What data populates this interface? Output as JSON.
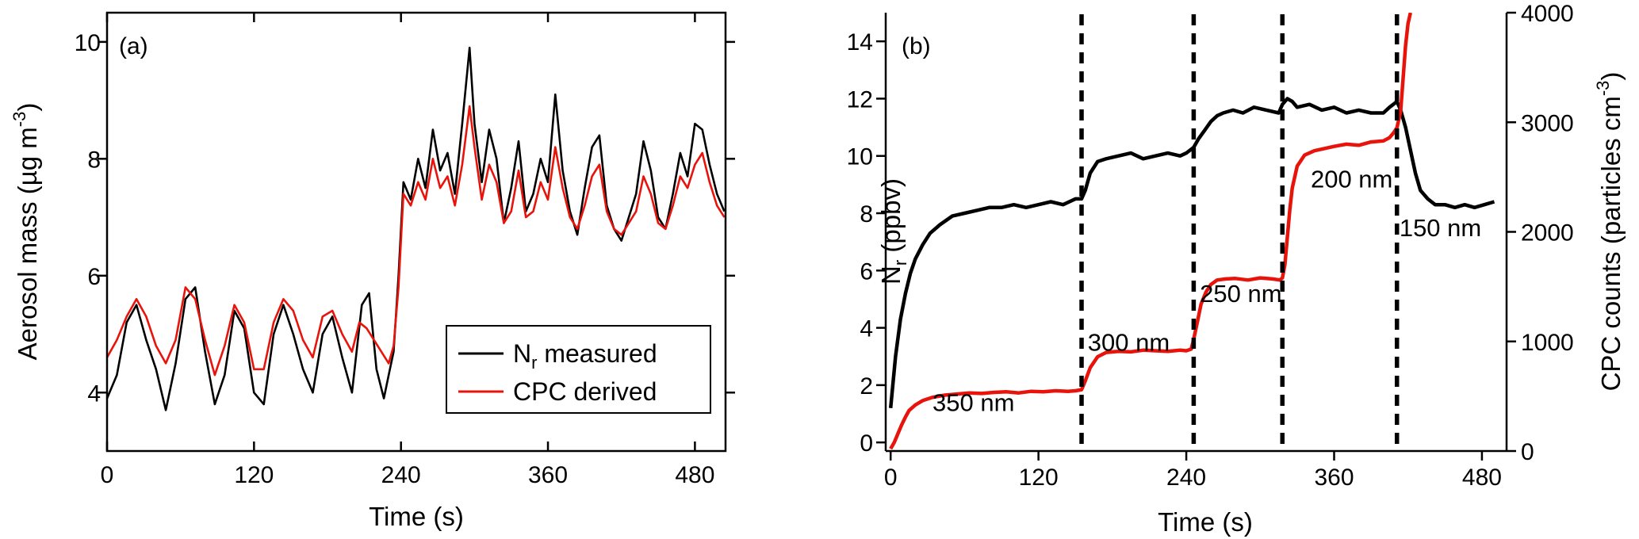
{
  "chart_data": [
    {
      "type": "line",
      "panel_label": "(a)",
      "xlabel": "Time (s)",
      "ylabel": "Aerosol mass (µg m",
      "ylabel_sup": "-3",
      "ylabel_close": ")",
      "xlim": [
        0,
        505
      ],
      "ylim": [
        3,
        10.5
      ],
      "xticks": [
        0,
        120,
        240,
        360,
        480
      ],
      "yticks": [
        4,
        6,
        8,
        10
      ],
      "legend_position": "bottom-right",
      "legend": {
        "nr_main": "N",
        "nr_sub": "r",
        "nr_rest": " measured",
        "cpc": "CPC derived"
      },
      "series": [
        {
          "name": "Nr measured",
          "color": "#000000",
          "x": [
            0,
            8,
            16,
            24,
            32,
            40,
            48,
            56,
            64,
            72,
            80,
            88,
            96,
            104,
            112,
            120,
            128,
            136,
            144,
            152,
            160,
            168,
            176,
            184,
            192,
            200,
            208,
            214,
            220,
            226,
            230,
            234,
            238,
            242,
            248,
            254,
            260,
            266,
            272,
            278,
            284,
            290,
            296,
            300,
            306,
            312,
            318,
            324,
            330,
            336,
            342,
            348,
            354,
            360,
            366,
            372,
            378,
            384,
            390,
            396,
            402,
            408,
            414,
            420,
            426,
            432,
            438,
            444,
            450,
            456,
            462,
            468,
            474,
            480,
            486,
            492,
            498,
            504
          ],
          "y": [
            3.9,
            4.3,
            5.2,
            5.5,
            4.9,
            4.4,
            3.7,
            4.5,
            5.6,
            5.8,
            4.7,
            3.8,
            4.3,
            5.4,
            5.1,
            4.0,
            3.8,
            5.0,
            5.5,
            5.0,
            4.4,
            4.0,
            5.0,
            5.3,
            4.6,
            4.0,
            5.5,
            5.7,
            4.4,
            3.9,
            4.3,
            4.7,
            6.0,
            7.6,
            7.3,
            8.0,
            7.5,
            8.5,
            7.8,
            8.1,
            7.4,
            8.6,
            9.9,
            8.6,
            7.6,
            8.5,
            8.0,
            6.9,
            7.5,
            8.3,
            7.1,
            7.4,
            8.0,
            7.6,
            9.1,
            7.8,
            7.1,
            6.7,
            7.5,
            8.2,
            8.4,
            7.2,
            6.8,
            6.6,
            7.0,
            7.4,
            8.3,
            7.8,
            7.0,
            6.8,
            7.4,
            8.1,
            7.7,
            8.6,
            8.5,
            7.9,
            7.4,
            7.1
          ]
        },
        {
          "name": "CPC derived",
          "color": "#e8140c",
          "x": [
            0,
            8,
            16,
            24,
            32,
            40,
            48,
            56,
            64,
            72,
            80,
            88,
            96,
            104,
            112,
            120,
            128,
            136,
            144,
            152,
            160,
            168,
            176,
            184,
            192,
            200,
            206,
            212,
            230,
            234,
            238,
            242,
            248,
            254,
            260,
            266,
            272,
            278,
            284,
            290,
            296,
            300,
            306,
            312,
            318,
            324,
            330,
            336,
            342,
            348,
            354,
            360,
            366,
            372,
            378,
            384,
            390,
            396,
            402,
            408,
            414,
            420,
            426,
            432,
            438,
            444,
            450,
            456,
            462,
            468,
            474,
            480,
            486,
            492,
            498,
            504
          ],
          "y": [
            4.6,
            4.9,
            5.3,
            5.6,
            5.3,
            4.8,
            4.5,
            4.9,
            5.8,
            5.6,
            4.9,
            4.3,
            4.8,
            5.5,
            5.2,
            4.4,
            4.4,
            5.2,
            5.6,
            5.4,
            4.9,
            4.6,
            5.3,
            5.4,
            5.0,
            4.7,
            5.2,
            5.1,
            4.5,
            4.8,
            5.8,
            7.4,
            7.2,
            7.6,
            7.3,
            8.0,
            7.5,
            7.7,
            7.2,
            7.9,
            8.9,
            8.2,
            7.3,
            7.9,
            7.6,
            6.9,
            7.1,
            7.8,
            7.0,
            7.1,
            7.6,
            7.3,
            8.2,
            7.5,
            7.0,
            6.8,
            7.2,
            7.7,
            7.9,
            7.1,
            6.8,
            6.7,
            6.9,
            7.1,
            7.7,
            7.4,
            6.9,
            6.8,
            7.2,
            7.7,
            7.5,
            7.9,
            8.1,
            7.6,
            7.2,
            7.0
          ]
        }
      ]
    },
    {
      "type": "line",
      "panel_label": "(b)",
      "xlabel": "Time (s)",
      "ylabel_main": "N",
      "ylabel_sub": "r",
      "ylabel_rest": " (ppbv)",
      "y2label": "CPC counts (particles cm",
      "y2label_sup": "-3",
      "y2label_close": ")",
      "xlim": [
        -4,
        500
      ],
      "ylim": [
        -0.3,
        15
      ],
      "y2lim": [
        0,
        4000
      ],
      "xticks": [
        0,
        120,
        240,
        360,
        480
      ],
      "yticks": [
        0,
        2,
        4,
        6,
        8,
        10,
        12,
        14
      ],
      "y2ticks": [
        0,
        1000,
        2000,
        3000,
        4000
      ],
      "vertical_lines_x": [
        155,
        246,
        318,
        411
      ],
      "annotations": [
        {
          "text": "350 nm",
          "x": 34,
          "y": 1.1
        },
        {
          "text": "300 nm",
          "x": 160,
          "y": 3.2
        },
        {
          "text": "250 nm",
          "x": 251,
          "y": 4.9
        },
        {
          "text": "200 nm",
          "x": 341,
          "y": 8.9
        },
        {
          "text": "150 nm",
          "x": 413,
          "y": 7.2
        }
      ],
      "series": [
        {
          "name": "Nr (ppbv)",
          "axis": "left",
          "color": "#000000",
          "x": [
            0,
            4,
            8,
            12,
            16,
            20,
            26,
            32,
            40,
            50,
            60,
            70,
            80,
            90,
            100,
            110,
            120,
            130,
            140,
            150,
            155,
            158,
            162,
            168,
            175,
            185,
            195,
            205,
            215,
            225,
            235,
            240,
            246,
            250,
            255,
            260,
            265,
            270,
            278,
            286,
            295,
            305,
            315,
            318,
            322,
            326,
            330,
            340,
            350,
            360,
            370,
            380,
            390,
            400,
            405,
            408,
            411,
            414,
            418,
            422,
            426,
            430,
            436,
            442,
            450,
            458,
            466,
            474,
            482,
            490
          ],
          "y": [
            1.2,
            3.0,
            4.3,
            5.2,
            5.9,
            6.4,
            6.9,
            7.3,
            7.6,
            7.9,
            8.0,
            8.1,
            8.2,
            8.2,
            8.3,
            8.2,
            8.3,
            8.4,
            8.3,
            8.5,
            8.5,
            8.8,
            9.4,
            9.8,
            9.9,
            10.0,
            10.1,
            9.9,
            10.0,
            10.1,
            10.0,
            10.1,
            10.3,
            10.6,
            10.9,
            11.2,
            11.4,
            11.5,
            11.6,
            11.5,
            11.7,
            11.6,
            11.5,
            11.8,
            12.0,
            11.9,
            11.7,
            11.8,
            11.6,
            11.7,
            11.5,
            11.6,
            11.5,
            11.5,
            11.7,
            11.8,
            11.9,
            11.6,
            11.0,
            10.2,
            9.4,
            8.8,
            8.5,
            8.3,
            8.3,
            8.2,
            8.3,
            8.2,
            8.3,
            8.4
          ]
        },
        {
          "name": "CPC counts",
          "axis": "right",
          "color": "#e8140c",
          "x": [
            0,
            3,
            6,
            9,
            12,
            15,
            20,
            26,
            34,
            44,
            54,
            64,
            74,
            84,
            94,
            104,
            114,
            124,
            134,
            144,
            150,
            155,
            158,
            162,
            168,
            175,
            185,
            195,
            205,
            215,
            225,
            235,
            240,
            244,
            246,
            249,
            252,
            256,
            260,
            265,
            272,
            280,
            290,
            300,
            310,
            316,
            318,
            320,
            322,
            324,
            326,
            330,
            336,
            344,
            352,
            360,
            370,
            380,
            390,
            400,
            405,
            408,
            411,
            414,
            416,
            418,
            420,
            422
          ],
          "y": [
            20,
            80,
            160,
            240,
            310,
            370,
            420,
            460,
            490,
            510,
            520,
            530,
            525,
            535,
            540,
            530,
            545,
            540,
            550,
            545,
            550,
            560,
            640,
            760,
            860,
            900,
            910,
            905,
            920,
            915,
            910,
            920,
            915,
            930,
            1020,
            1180,
            1340,
            1450,
            1520,
            1560,
            1570,
            1575,
            1560,
            1580,
            1570,
            1560,
            1580,
            1700,
            1950,
            2200,
            2400,
            2600,
            2700,
            2740,
            2760,
            2780,
            2800,
            2790,
            2820,
            2830,
            2860,
            2900,
            2950,
            3100,
            3400,
            3700,
            3900,
            4000
          ]
        }
      ]
    }
  ]
}
